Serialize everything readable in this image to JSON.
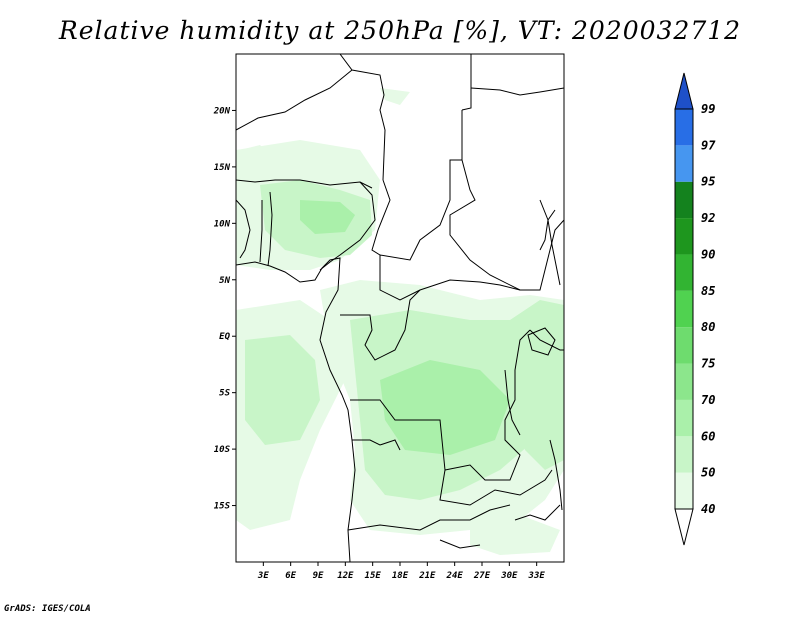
{
  "title": "Relative humidity at 250hPa [%], VT: 2020032712",
  "credit": "GrADS: IGES/COLA",
  "map": {
    "lon_range": [
      0,
      36
    ],
    "lat_range": [
      -20,
      25
    ],
    "x_ticks": [
      "3E",
      "6E",
      "9E",
      "12E",
      "15E",
      "18E",
      "21E",
      "24E",
      "27E",
      "30E",
      "33E"
    ],
    "y_ticks": [
      "20N",
      "15N",
      "10N",
      "5N",
      "EQ",
      "5S",
      "10S",
      "15S"
    ]
  },
  "colorbar": {
    "levels": [
      "40",
      "50",
      "60",
      "70",
      "75",
      "80",
      "85",
      "90",
      "92",
      "95",
      "97",
      "99"
    ],
    "colors": [
      "#ffffff",
      "#e6fae6",
      "#c8f5c8",
      "#aaf0aa",
      "#8ce68c",
      "#6edc6e",
      "#50d250",
      "#32b432",
      "#1e961e",
      "#14821e",
      "#4696f0",
      "#286ee6",
      "#1e50c8"
    ]
  },
  "fields": {
    "light": "#e6fae6",
    "mid": "#c8f5c8",
    "deep": "#aaf0aa"
  }
}
